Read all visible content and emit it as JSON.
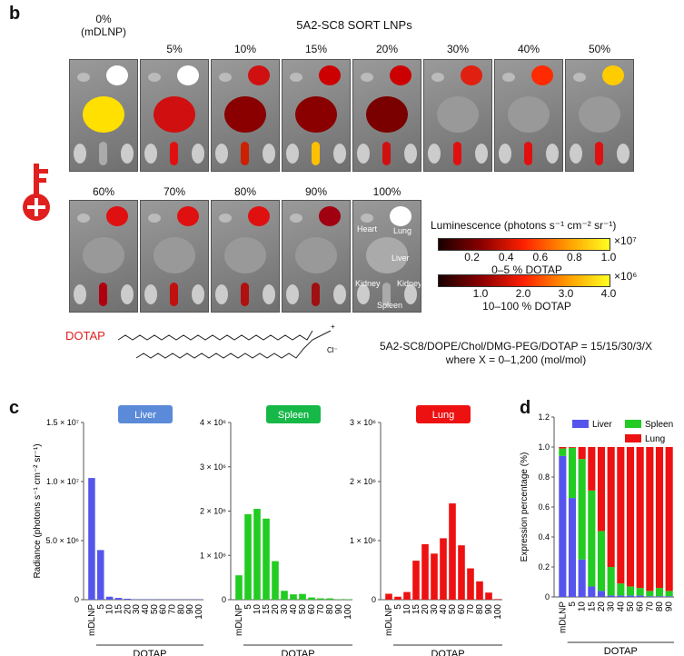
{
  "panel_b": {
    "label": "b",
    "title": "5A2-SC8 SORT LNPs",
    "row1": [
      "0%\n(mDLNP)",
      "5%",
      "10%",
      "15%",
      "20%",
      "30%",
      "40%",
      "50%"
    ],
    "row2": [
      "60%",
      "70%",
      "80%",
      "90%",
      "100%"
    ],
    "organ_labels": {
      "heart": "Heart",
      "lung": "Lung",
      "liver": "Liver",
      "kidney_left": "Kidney",
      "kidney_right": "Kidney",
      "spleen": "Spleen"
    },
    "legend_title": "Luminescence (photons s⁻¹ cm⁻² sr⁻¹)",
    "colorbar1": {
      "ticks": [
        "0.2",
        "0.4",
        "0.6",
        "0.8",
        "1.0"
      ],
      "multiplier": "×10⁷",
      "caption": "0–5 % DOTAP"
    },
    "colorbar2": {
      "ticks": [
        "1.0",
        "2.0",
        "3.0",
        "4.0"
      ],
      "multiplier": "×10⁶",
      "caption": "10–100 % DOTAP"
    },
    "dotap_label": "DOTAP",
    "dotap_color": "#e0201e",
    "formula_line1": "5A2-SC8/DOPE/Chol/DMG-PEG/DOTAP = 15/15/30/3/X",
    "formula_line2": "where X = 0–1,200 (mol/mol)",
    "structure_ions": {
      "cation": "+",
      "anion": "Cl⁻"
    }
  },
  "panel_c": {
    "label": "c"
  },
  "panel_d": {
    "label": "d"
  },
  "chart_data": [
    {
      "type": "bar",
      "title": "Liver",
      "title_color": "#5a8ad8",
      "bar_color": "#5555ee",
      "ylabel": "Radiance (photons s⁻¹ cm⁻² sr⁻¹)",
      "xlabel": "DOTAP",
      "categories": [
        "mDLNP",
        "5",
        "10",
        "15",
        "20",
        "30",
        "40",
        "50",
        "60",
        "70",
        "80",
        "90",
        "100"
      ],
      "values": [
        10300000,
        4200000,
        250000,
        150000,
        80000,
        30000,
        30000,
        30000,
        20000,
        20000,
        20000,
        20000,
        20000
      ],
      "ylim": [
        0,
        15000000
      ],
      "yticks": [
        "0",
        "5.0 × 10⁶",
        "1.0 × 10⁷",
        "1.5 × 10⁷"
      ],
      "ytick_values": [
        0,
        5000000,
        10000000,
        15000000
      ]
    },
    {
      "type": "bar",
      "title": "Spleen",
      "title_color": "#16b848",
      "bar_color": "#22cc22",
      "ylabel": "",
      "xlabel": "DOTAP",
      "categories": [
        "mDLNP",
        "5",
        "10",
        "15",
        "20",
        "30",
        "40",
        "50",
        "60",
        "70",
        "80",
        "90",
        "100"
      ],
      "values": [
        550000,
        1930000,
        2050000,
        1830000,
        870000,
        200000,
        120000,
        130000,
        50000,
        30000,
        30000,
        10000,
        10000
      ],
      "ylim": [
        0,
        4000000
      ],
      "yticks": [
        "0",
        "1 × 10⁶",
        "2 × 10⁶",
        "3 × 10⁶",
        "4 × 10⁶"
      ],
      "ytick_values": [
        0,
        1000000,
        2000000,
        3000000,
        4000000
      ]
    },
    {
      "type": "bar",
      "title": "Lung",
      "title_color": "#ee1111",
      "bar_color": "#ee1111",
      "ylabel": "",
      "xlabel": "DOTAP",
      "categories": [
        "mDLNP",
        "5",
        "10",
        "15",
        "20",
        "30",
        "40",
        "50",
        "60",
        "70",
        "80",
        "90",
        "100"
      ],
      "values": [
        100000,
        50000,
        130000,
        660000,
        940000,
        780000,
        1040000,
        1630000,
        920000,
        530000,
        310000,
        120000,
        10000
      ],
      "ylim": [
        0,
        3000000
      ],
      "yticks": [
        "0",
        "1 × 10⁶",
        "2 × 10⁶",
        "3 × 10⁶"
      ],
      "ytick_values": [
        0,
        1000000,
        2000000,
        3000000
      ]
    },
    {
      "type": "bar",
      "stacked": true,
      "ylabel": "Expression percentage (%)",
      "xlabel": "DOTAP",
      "categories": [
        "mDLNP",
        "5",
        "10",
        "15",
        "20",
        "30",
        "40",
        "50",
        "60",
        "70",
        "80",
        "90"
      ],
      "series": [
        {
          "name": "Liver",
          "color": "#5555ee",
          "values": [
            0.94,
            0.66,
            0.25,
            0.07,
            0.04,
            0.01,
            0.01,
            0.01,
            0.01,
            0.005,
            0.005,
            0.005
          ]
        },
        {
          "name": "Spleen",
          "color": "#22cc22",
          "values": [
            0.05,
            0.335,
            0.67,
            0.64,
            0.4,
            0.19,
            0.08,
            0.06,
            0.05,
            0.035,
            0.055,
            0.035
          ]
        },
        {
          "name": "Lung",
          "color": "#ee1111",
          "values": [
            0.01,
            0.005,
            0.08,
            0.29,
            0.56,
            0.8,
            0.91,
            0.93,
            0.94,
            0.96,
            0.94,
            0.96
          ]
        }
      ],
      "ylim": [
        0,
        1.2
      ],
      "yticks": [
        "0",
        "0.2",
        "0.4",
        "0.6",
        "0.8",
        "1.0",
        "1.2"
      ],
      "ytick_values": [
        0,
        0.2,
        0.4,
        0.6,
        0.8,
        1.0,
        1.2
      ],
      "legend": "top-right"
    }
  ]
}
